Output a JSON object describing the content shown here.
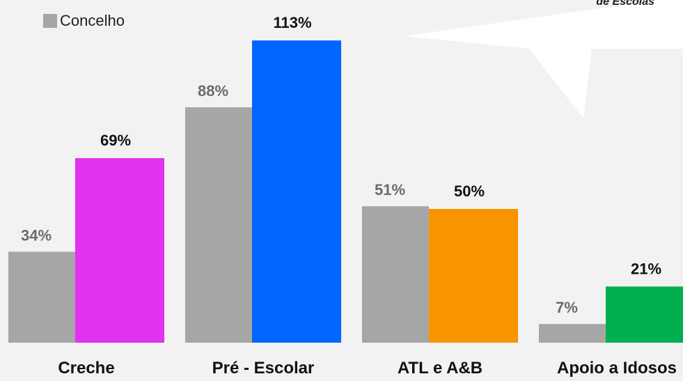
{
  "legend": {
    "label": "Concelho",
    "color": "#a6a6a6"
  },
  "callout": {
    "text": "de Escolas"
  },
  "chart_data": {
    "type": "bar",
    "categories": [
      "Creche",
      "Pré - Escolar",
      "ATL e A&B",
      "Apoio a Idosos"
    ],
    "series": [
      {
        "name": "Concelho",
        "values": [
          34,
          88,
          51,
          7
        ],
        "labels": [
          "34%",
          "88%",
          "51%",
          "7%"
        ],
        "color": "#a6a6a6"
      },
      {
        "values": [
          69,
          113,
          50,
          21
        ],
        "labels": [
          "69%",
          "113%",
          "50%",
          "21%"
        ],
        "colors": [
          "#e033f0",
          "#0066ff",
          "#f79400",
          "#00b050"
        ]
      }
    ],
    "value_unit": "%",
    "ylim": [
      0,
      120
    ],
    "grid": false,
    "legend_position": "top-left",
    "title": "",
    "xlabel": "",
    "ylabel": ""
  }
}
